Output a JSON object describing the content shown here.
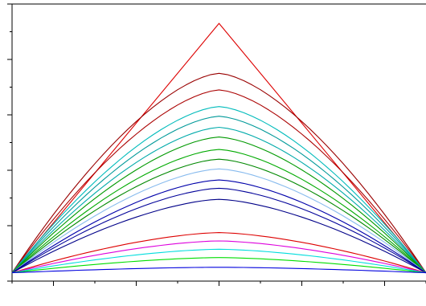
{
  "chart_data": {
    "type": "line",
    "title": "",
    "xlabel": "",
    "ylabel": "",
    "xlim": [
      0,
      50
    ],
    "ylim": [
      0,
      10
    ],
    "x_ticks": [
      0,
      5,
      10,
      15,
      20,
      25,
      30,
      35,
      40,
      45,
      50
    ],
    "y_ticks": [
      0,
      1,
      2,
      3,
      4,
      5,
      6,
      7,
      8,
      9,
      10
    ],
    "tick_labels_shown": false,
    "grid": false,
    "legend": "none",
    "x": [
      0,
      25,
      50
    ],
    "series": [
      {
        "values": [
          0.3,
          9.3,
          0.3
        ],
        "color": "#dd0000"
      },
      {
        "values": [
          0.3,
          7.5,
          0.3
        ],
        "color": "#990000"
      },
      {
        "values": [
          0.3,
          6.9,
          0.3
        ],
        "color": "#aa0000"
      },
      {
        "values": [
          0.3,
          6.3,
          0.3
        ],
        "color": "#00bbbb"
      },
      {
        "values": [
          0.3,
          5.95,
          0.3
        ],
        "color": "#009999"
      },
      {
        "values": [
          0.3,
          5.55,
          0.3
        ],
        "color": "#00aaaa"
      },
      {
        "values": [
          0.3,
          5.2,
          0.3
        ],
        "color": "#009900"
      },
      {
        "values": [
          0.3,
          4.75,
          0.3
        ],
        "color": "#00aa00"
      },
      {
        "values": [
          0.3,
          4.4,
          0.3
        ],
        "color": "#008800"
      },
      {
        "values": [
          0.3,
          4.05,
          0.3
        ],
        "color": "#88bbee"
      },
      {
        "values": [
          0.3,
          3.65,
          0.3
        ],
        "color": "#0000aa"
      },
      {
        "values": [
          0.3,
          3.35,
          0.3
        ],
        "color": "#000099"
      },
      {
        "values": [
          0.3,
          2.95,
          0.3
        ],
        "color": "#000088"
      },
      {
        "values": [
          0.3,
          1.75,
          0.3
        ],
        "color": "#dd0000"
      },
      {
        "values": [
          0.3,
          1.45,
          0.3
        ],
        "color": "#dd00dd"
      },
      {
        "values": [
          0.3,
          1.15,
          0.3
        ],
        "color": "#00dddd"
      },
      {
        "values": [
          0.3,
          0.85,
          0.3
        ],
        "color": "#00dd00"
      },
      {
        "values": [
          0.3,
          0.5,
          0.3
        ],
        "color": "#0000dd"
      }
    ]
  }
}
